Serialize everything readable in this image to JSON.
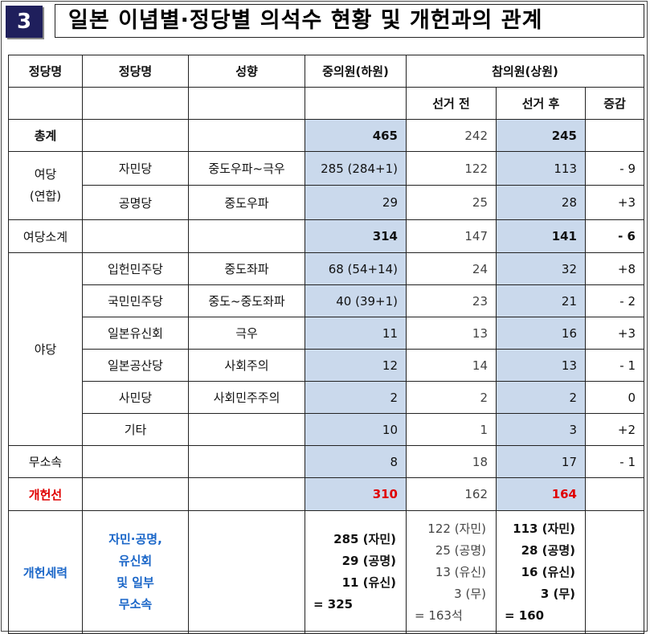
{
  "badge": "3",
  "title": "일본 이념별·정당별 의석수 현황 및 개헌과의 관계",
  "header": {
    "col1": "정당명",
    "col2": "정당명",
    "col3": "성향",
    "col4": "중의원(하원)",
    "col5": "참의원(상원)",
    "sub_before": "선거 전",
    "sub_after": "선거 후",
    "sub_change": "증감"
  },
  "total": {
    "label": "총계",
    "lower": "465",
    "before": "242",
    "after": "245"
  },
  "ruling": {
    "label1": "여당",
    "label2": "(연합)",
    "subtotal": {
      "label": "여당소계",
      "lower": "314",
      "before": "147",
      "after": "141",
      "change": "- 6"
    }
  },
  "opposition_label": "야당",
  "rows": [
    {
      "party": "자민당",
      "leaning": "중도우파~극우",
      "lower": "285  (284+1)",
      "before": "122",
      "after": "113",
      "change": "- 9"
    },
    {
      "party": "공명당",
      "leaning": "중도우파",
      "lower": "29",
      "before": "25",
      "after": "28",
      "change": "+3"
    },
    {
      "party": "입헌민주당",
      "leaning": "중도좌파",
      "lower": "68  (54+14)",
      "before": "24",
      "after": "32",
      "change": "+8"
    },
    {
      "party": "국민민주당",
      "leaning": "중도~중도좌파",
      "lower": "40  (39+1)",
      "before": "23",
      "after": "21",
      "change": "- 2"
    },
    {
      "party": "일본유신회",
      "leaning": "극우",
      "lower": "11",
      "before": "13",
      "after": "16",
      "change": "+3"
    },
    {
      "party": "일본공산당",
      "leaning": "사회주의",
      "lower": "12",
      "before": "14",
      "after": "13",
      "change": "- 1"
    },
    {
      "party": "사민당",
      "leaning": "사회민주주의",
      "lower": "2",
      "before": "2",
      "after": "2",
      "change": "0"
    },
    {
      "party": "기타",
      "leaning": "",
      "lower": "10",
      "before": "1",
      "after": "3",
      "change": "+2"
    }
  ],
  "independent": {
    "label": "무소속",
    "lower": "8",
    "before": "18",
    "after": "17",
    "change": "- 1"
  },
  "threshold": {
    "label": "개헌선",
    "lower": "310",
    "before": "162",
    "after": "164"
  },
  "forces": {
    "label": "개헌세력",
    "desc": [
      "자민·공명,",
      "유신회",
      "및 일부",
      "무소속"
    ],
    "lower": [
      "285 (자민)",
      "29 (공명)",
      "11 (유신)",
      "=  325"
    ],
    "before": [
      "122 (자민)",
      "25 (공명)",
      "13 (유신)",
      "3 (무)",
      "=  163석"
    ],
    "after": [
      "113 (자민)",
      "28 (공명)",
      "16 (유신)",
      "3 (무)",
      "=  160"
    ]
  },
  "colors": {
    "shade": "#cad9ec",
    "red": "#e00000",
    "blue": "#1a66c8",
    "badge": "#1f1f5c"
  }
}
